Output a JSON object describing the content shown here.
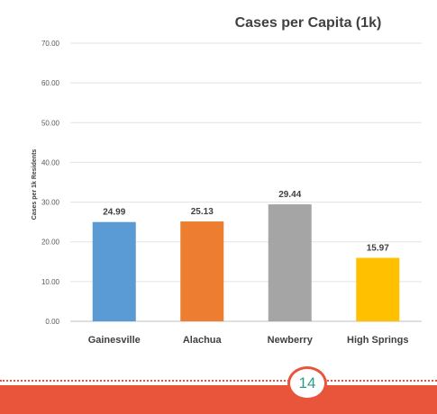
{
  "chart_data": {
    "type": "bar",
    "title": "Cases per Capita (1k)",
    "ylabel": "Cases per 1k Residents",
    "xlabel": "",
    "categories": [
      "Gainesville",
      "Alachua",
      "Newberry",
      "High Springs"
    ],
    "values": [
      24.99,
      25.13,
      29.44,
      15.97
    ],
    "value_labels": [
      "24.99",
      "25.13",
      "29.44",
      "15.97"
    ],
    "bar_colors": [
      "#5b9bd5",
      "#ed7d31",
      "#a5a5a5",
      "#ffc000"
    ],
    "ylim": [
      0,
      70
    ],
    "yticks": [
      0,
      10,
      20,
      30,
      40,
      50,
      60,
      70
    ],
    "ytick_labels": [
      "0.00",
      "10.00",
      "20.00",
      "30.00",
      "40.00",
      "50.00",
      "60.00",
      "70.00"
    ],
    "grid": true,
    "legend": "none"
  },
  "footer": {
    "page_number": "14",
    "accent_color": "#e8553b",
    "number_color": "#2e9c8a"
  }
}
